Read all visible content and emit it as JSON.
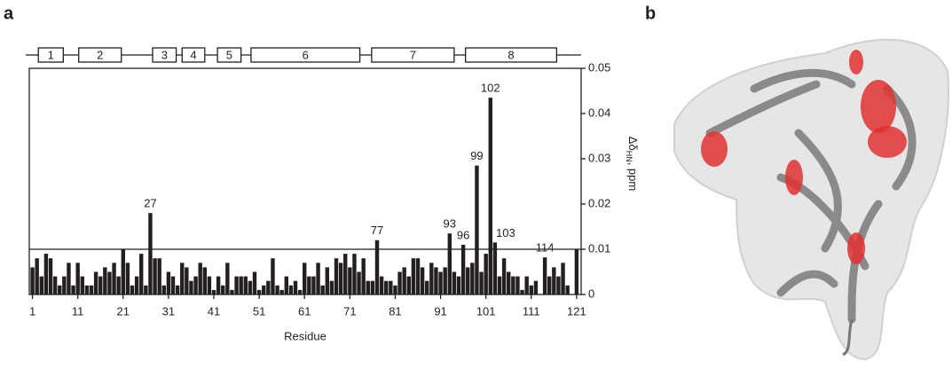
{
  "panel_a": "a",
  "panel_b": "b",
  "chart_data": {
    "type": "bar",
    "xlabel": "Residue",
    "ylabel": [
      "Δδ",
      "HN",
      ", ppm"
    ],
    "x": [
      1,
      2,
      3,
      4,
      5,
      6,
      7,
      8,
      9,
      10,
      11,
      12,
      13,
      14,
      15,
      16,
      17,
      18,
      19,
      20,
      21,
      22,
      23,
      24,
      25,
      26,
      27,
      28,
      29,
      30,
      31,
      32,
      33,
      34,
      35,
      36,
      37,
      38,
      39,
      40,
      41,
      42,
      43,
      44,
      45,
      46,
      47,
      48,
      49,
      50,
      51,
      52,
      53,
      54,
      55,
      56,
      57,
      58,
      59,
      60,
      61,
      62,
      63,
      64,
      65,
      66,
      67,
      68,
      69,
      70,
      71,
      72,
      73,
      74,
      75,
      76,
      77,
      78,
      79,
      80,
      81,
      82,
      83,
      84,
      85,
      86,
      87,
      88,
      89,
      90,
      91,
      92,
      93,
      94,
      95,
      96,
      97,
      98,
      99,
      100,
      101,
      102,
      103,
      104,
      105,
      106,
      107,
      108,
      109,
      110,
      111,
      112,
      113,
      114,
      115,
      116,
      117,
      118,
      119,
      120,
      121
    ],
    "values": [
      0.006,
      0.008,
      0.004,
      0.009,
      0.008,
      0.004,
      0.002,
      0.004,
      0.007,
      0.002,
      0.007,
      0.004,
      0.002,
      0.002,
      0.005,
      0.004,
      0.006,
      0.005,
      0.007,
      0.004,
      0.01,
      0.007,
      0.002,
      0.004,
      0.009,
      0.002,
      0.018,
      0.008,
      0.008,
      0.002,
      0.005,
      0.004,
      0.002,
      0.007,
      0.006,
      0.003,
      0.004,
      0.007,
      0.006,
      0.004,
      0.001,
      0.004,
      0.002,
      0.007,
      0.001,
      0.004,
      0.004,
      0.004,
      0.003,
      0.005,
      0.001,
      0.002,
      0.003,
      0.008,
      0.002,
      0.001,
      0.004,
      0.002,
      0.003,
      0.001,
      0.007,
      0.004,
      0.004,
      0.007,
      0.002,
      0.006,
      0.003,
      0.008,
      0.007,
      0.009,
      0.006,
      0.009,
      0.005,
      0.008,
      0.003,
      0.003,
      0.012,
      0.004,
      0.003,
      0.003,
      0.002,
      0.005,
      0.006,
      0.004,
      0.008,
      0.008,
      0.006,
      0.003,
      0.007,
      0.006,
      0.005,
      0.006,
      0.0135,
      0.005,
      0.004,
      0.011,
      0.006,
      0.007,
      0.0285,
      0.005,
      0.009,
      0.0435,
      0.0115,
      0.004,
      0.008,
      0.005,
      0.004,
      0.004,
      0.001,
      0.004,
      0.002,
      0.003,
      0,
      0.0082,
      0.004,
      0.006,
      0.004,
      0.007,
      0.002,
      0,
      0.01
    ],
    "color": "#231f20",
    "labeled_x": [
      27,
      77,
      93,
      96,
      99,
      102,
      103,
      114
    ],
    "threshold": 0.01,
    "xlim": [
      0.3,
      122
    ],
    "xticks": [
      1,
      11,
      21,
      31,
      41,
      51,
      61,
      71,
      81,
      91,
      101,
      111,
      121
    ],
    "ylim": [
      0,
      0.05
    ],
    "yticks": [
      0,
      0.01,
      0.02,
      0.03,
      0.04,
      0.05
    ],
    "helices": [
      {
        "label": "1",
        "start": 2.3,
        "end": 7.8
      },
      {
        "label": "2",
        "start": 11.2,
        "end": 20.6
      },
      {
        "label": "3",
        "start": 27.5,
        "end": 32.7
      },
      {
        "label": "4",
        "start": 34,
        "end": 39
      },
      {
        "label": "5",
        "start": 41.8,
        "end": 47
      },
      {
        "label": "6",
        "start": 49.2,
        "end": 73.2
      },
      {
        "label": "7",
        "start": 75.8,
        "end": 94
      },
      {
        "label": "8",
        "start": 96.5,
        "end": 116.6
      }
    ]
  }
}
